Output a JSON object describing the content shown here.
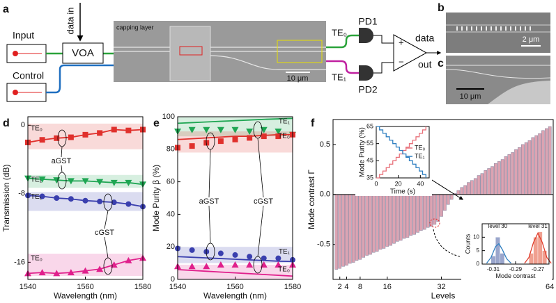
{
  "panels": [
    "a",
    "b",
    "c",
    "d",
    "e",
    "f"
  ],
  "schematic": {
    "input": "Input",
    "data_in": "data in",
    "voa": "VOA",
    "control": "Control",
    "capping_layer": "capping layer",
    "scale_a": "10 μm",
    "te0": "TE₀",
    "te1": "TE₁",
    "pd1": "PD1",
    "pd2": "PD2",
    "plus": "+",
    "minus": "−",
    "data_out": [
      "data",
      "out"
    ],
    "scale_b": "2 μm",
    "scale_c": "10 μm"
  },
  "chart_data": [
    {
      "type": "line",
      "y_label": "Transmission (dB)",
      "x_label": "Wavelength (nm)",
      "x": [
        1540,
        1545,
        1550,
        1555,
        1560,
        1565,
        1570,
        1575,
        1580
      ],
      "xlim": [
        1540,
        1580
      ],
      "xticks": [
        1540,
        1560,
        1580
      ],
      "ylim": [
        -18,
        1
      ],
      "yticks": [
        -16,
        -8,
        0
      ],
      "annotations": [
        "aGST",
        "cGST"
      ],
      "series": [
        {
          "name": "TE₀",
          "color": "#e0302c",
          "marker": "square",
          "values": [
            -2.0,
            -1.7,
            -1.5,
            -1.4,
            -1.1,
            -0.9,
            -0.5,
            -0.6,
            -0.5
          ],
          "band": [
            -2.8,
            0.2
          ]
        },
        {
          "name": "TE₁",
          "color": "#1fa653",
          "marker": "tri-down",
          "values": [
            -6.2,
            -6.3,
            -6.4,
            -6.5,
            -6.5,
            -6.6,
            -6.7,
            -6.7,
            -6.9
          ],
          "band": [
            -7.3,
            -5.8
          ]
        },
        {
          "name": "TE₁",
          "color": "#3a3fae",
          "marker": "circle",
          "values": [
            -8.2,
            -8.3,
            -8.5,
            -8.6,
            -8.8,
            -8.9,
            -9.0,
            -9.2,
            -9.5
          ],
          "band": [
            -10.0,
            -7.8
          ]
        },
        {
          "name": "TE₀",
          "color": "#e0208c",
          "marker": "tri-up",
          "values": [
            -17.3,
            -17.2,
            -17.3,
            -17.2,
            -17.0,
            -16.8,
            -16.3,
            -15.8,
            -15.5
          ],
          "band": [
            -17.6,
            -15.0
          ]
        }
      ]
    },
    {
      "type": "line",
      "y_label": "Mode Purity β (%)",
      "x_label": "Wavelength (nm)",
      "x": [
        1540,
        1545,
        1550,
        1555,
        1560,
        1565,
        1570,
        1575,
        1580
      ],
      "xlim": [
        1540,
        1580
      ],
      "xticks": [
        1540,
        1560,
        1580
      ],
      "ylim": [
        0,
        100
      ],
      "yticks": [
        0,
        20,
        40,
        60,
        80,
        100
      ],
      "annotations": [
        "aGST",
        "cGST"
      ],
      "series": [
        {
          "name": "TE₁",
          "color": "#1fa653",
          "marker": "tri-down",
          "values": [
            91,
            92,
            92,
            92,
            92,
            91,
            92,
            91,
            89
          ],
          "fit": [
            96,
            96.4,
            96.8,
            97.2,
            97.6,
            98,
            98.4,
            98.7,
            99
          ],
          "band": [
            88,
            100
          ]
        },
        {
          "name": "TE₀",
          "color": "#e0302c",
          "marker": "square",
          "values": [
            81,
            82,
            84,
            85,
            86,
            87,
            88,
            88,
            89
          ],
          "fit": [
            86,
            86.5,
            87,
            87.5,
            88,
            88,
            88.5,
            89,
            89
          ],
          "band": [
            78,
            91
          ]
        },
        {
          "name": "TE₁",
          "color": "#3a3fae",
          "marker": "circle",
          "values": [
            19,
            18,
            17,
            16,
            15,
            14,
            13,
            13,
            12
          ],
          "fit": [
            14,
            13.6,
            13.2,
            12.8,
            12.4,
            12,
            11.6,
            11.2,
            11
          ],
          "band": [
            10,
            20
          ]
        },
        {
          "name": "TE₀",
          "color": "#e0208c",
          "marker": "tri-up",
          "values": [
            8,
            8,
            8,
            9,
            9,
            9,
            9,
            9,
            9
          ],
          "fit": [
            6,
            5.5,
            5,
            4.5,
            4,
            3.5,
            3,
            2.5,
            2
          ],
          "band": [
            0,
            9
          ]
        }
      ]
    },
    {
      "type": "bar",
      "y_label": "Mode contrast Γ",
      "x_label": "Levels",
      "x": [
        1,
        2,
        3,
        4,
        5,
        6,
        7,
        8,
        9,
        10,
        11,
        12,
        13,
        14,
        15,
        16,
        17,
        18,
        19,
        20,
        21,
        22,
        23,
        24,
        25,
        26,
        27,
        28,
        29,
        30,
        31,
        32,
        33,
        34,
        35,
        36,
        37,
        38,
        39,
        40,
        41,
        42,
        43,
        44,
        45,
        46,
        47,
        48,
        49,
        50,
        51,
        52,
        53,
        54,
        55,
        56,
        57,
        58,
        59,
        60,
        61,
        62,
        63,
        64
      ],
      "values": [
        -0.75,
        -0.74,
        -0.72,
        -0.71,
        -0.69,
        -0.68,
        -0.66,
        -0.65,
        -0.63,
        -0.61,
        -0.6,
        -0.58,
        -0.57,
        -0.55,
        -0.54,
        -0.52,
        -0.51,
        -0.49,
        -0.47,
        -0.46,
        -0.44,
        -0.43,
        -0.41,
        -0.4,
        -0.38,
        -0.36,
        -0.35,
        -0.33,
        -0.32,
        -0.3,
        -0.27,
        -0.22,
        -0.16,
        -0.1,
        -0.05,
        0.01,
        0.04,
        0.07,
        0.09,
        0.12,
        0.14,
        0.16,
        0.19,
        0.21,
        0.24,
        0.26,
        0.28,
        0.31,
        0.33,
        0.35,
        0.38,
        0.4,
        0.42,
        0.45,
        0.47,
        0.5,
        0.52,
        0.54,
        0.57,
        0.59,
        0.61,
        0.64,
        0.66,
        0.68
      ],
      "color": "#dca3b2",
      "xlim": [
        0,
        65
      ],
      "xticks": [
        2,
        4,
        8,
        16,
        32,
        64
      ],
      "ylim": [
        -0.85,
        0.75
      ],
      "yticks": [
        -0.5,
        {
          "value": 0,
          "label": "0.0"
        },
        0.5
      ]
    },
    {
      "type": "step",
      "x_label": "Time (s)",
      "y_label": "Mode Purity (%)",
      "x": [
        0,
        3,
        6,
        9,
        12,
        15,
        18,
        21,
        24,
        27,
        30,
        33,
        36,
        39,
        42,
        45
      ],
      "xlim": [
        0,
        48
      ],
      "xticks": [
        0,
        20,
        40
      ],
      "ylim": [
        35,
        65
      ],
      "yticks": [
        35,
        45,
        55,
        65
      ],
      "legend": "right",
      "series": [
        {
          "name": "TE₀",
          "color": "#e8707a",
          "values": [
            35,
            37,
            39,
            41,
            43,
            45,
            47,
            49,
            51,
            53,
            55,
            57,
            59,
            61,
            63,
            65
          ]
        },
        {
          "name": "TE₁",
          "color": "#2f7fc1",
          "values": [
            65,
            63,
            61,
            59,
            57,
            55,
            53,
            51,
            49,
            47,
            45,
            43,
            41,
            39,
            37,
            35
          ]
        }
      ]
    },
    {
      "type": "histogram",
      "x_label": "Mode contrast",
      "y_label": "Counts",
      "xlim": [
        -0.32,
        -0.26
      ],
      "xticks": [
        -0.31,
        -0.29,
        -0.27
      ],
      "ylim": [
        0,
        15
      ],
      "yticks": [
        0,
        5,
        10
      ],
      "series": [
        {
          "name": "level 30",
          "color": "#9aa6cc",
          "line_color": "#2f7fc1",
          "bins": [
            -0.312,
            -0.308,
            -0.304,
            -0.3
          ],
          "counts": [
            3,
            10,
            4
          ],
          "fit_x": [
            -0.316,
            -0.312,
            -0.308,
            -0.305,
            -0.302,
            -0.298,
            -0.294
          ],
          "fit": [
            0.3,
            2.5,
            6.5,
            7.6,
            5.5,
            2,
            0.3
          ]
        },
        {
          "name": "level 31",
          "color": "#f0a090",
          "line_color": "#e03c2c",
          "bins": [
            -0.278,
            -0.274,
            -0.27,
            -0.266,
            -0.262
          ],
          "counts": [
            4,
            10,
            12,
            5
          ],
          "fit_x": [
            -0.282,
            -0.278,
            -0.274,
            -0.27,
            -0.266,
            -0.262,
            -0.258
          ],
          "fit": [
            0.3,
            2.5,
            8,
            11.5,
            8,
            2.5,
            0.3
          ]
        }
      ]
    }
  ]
}
